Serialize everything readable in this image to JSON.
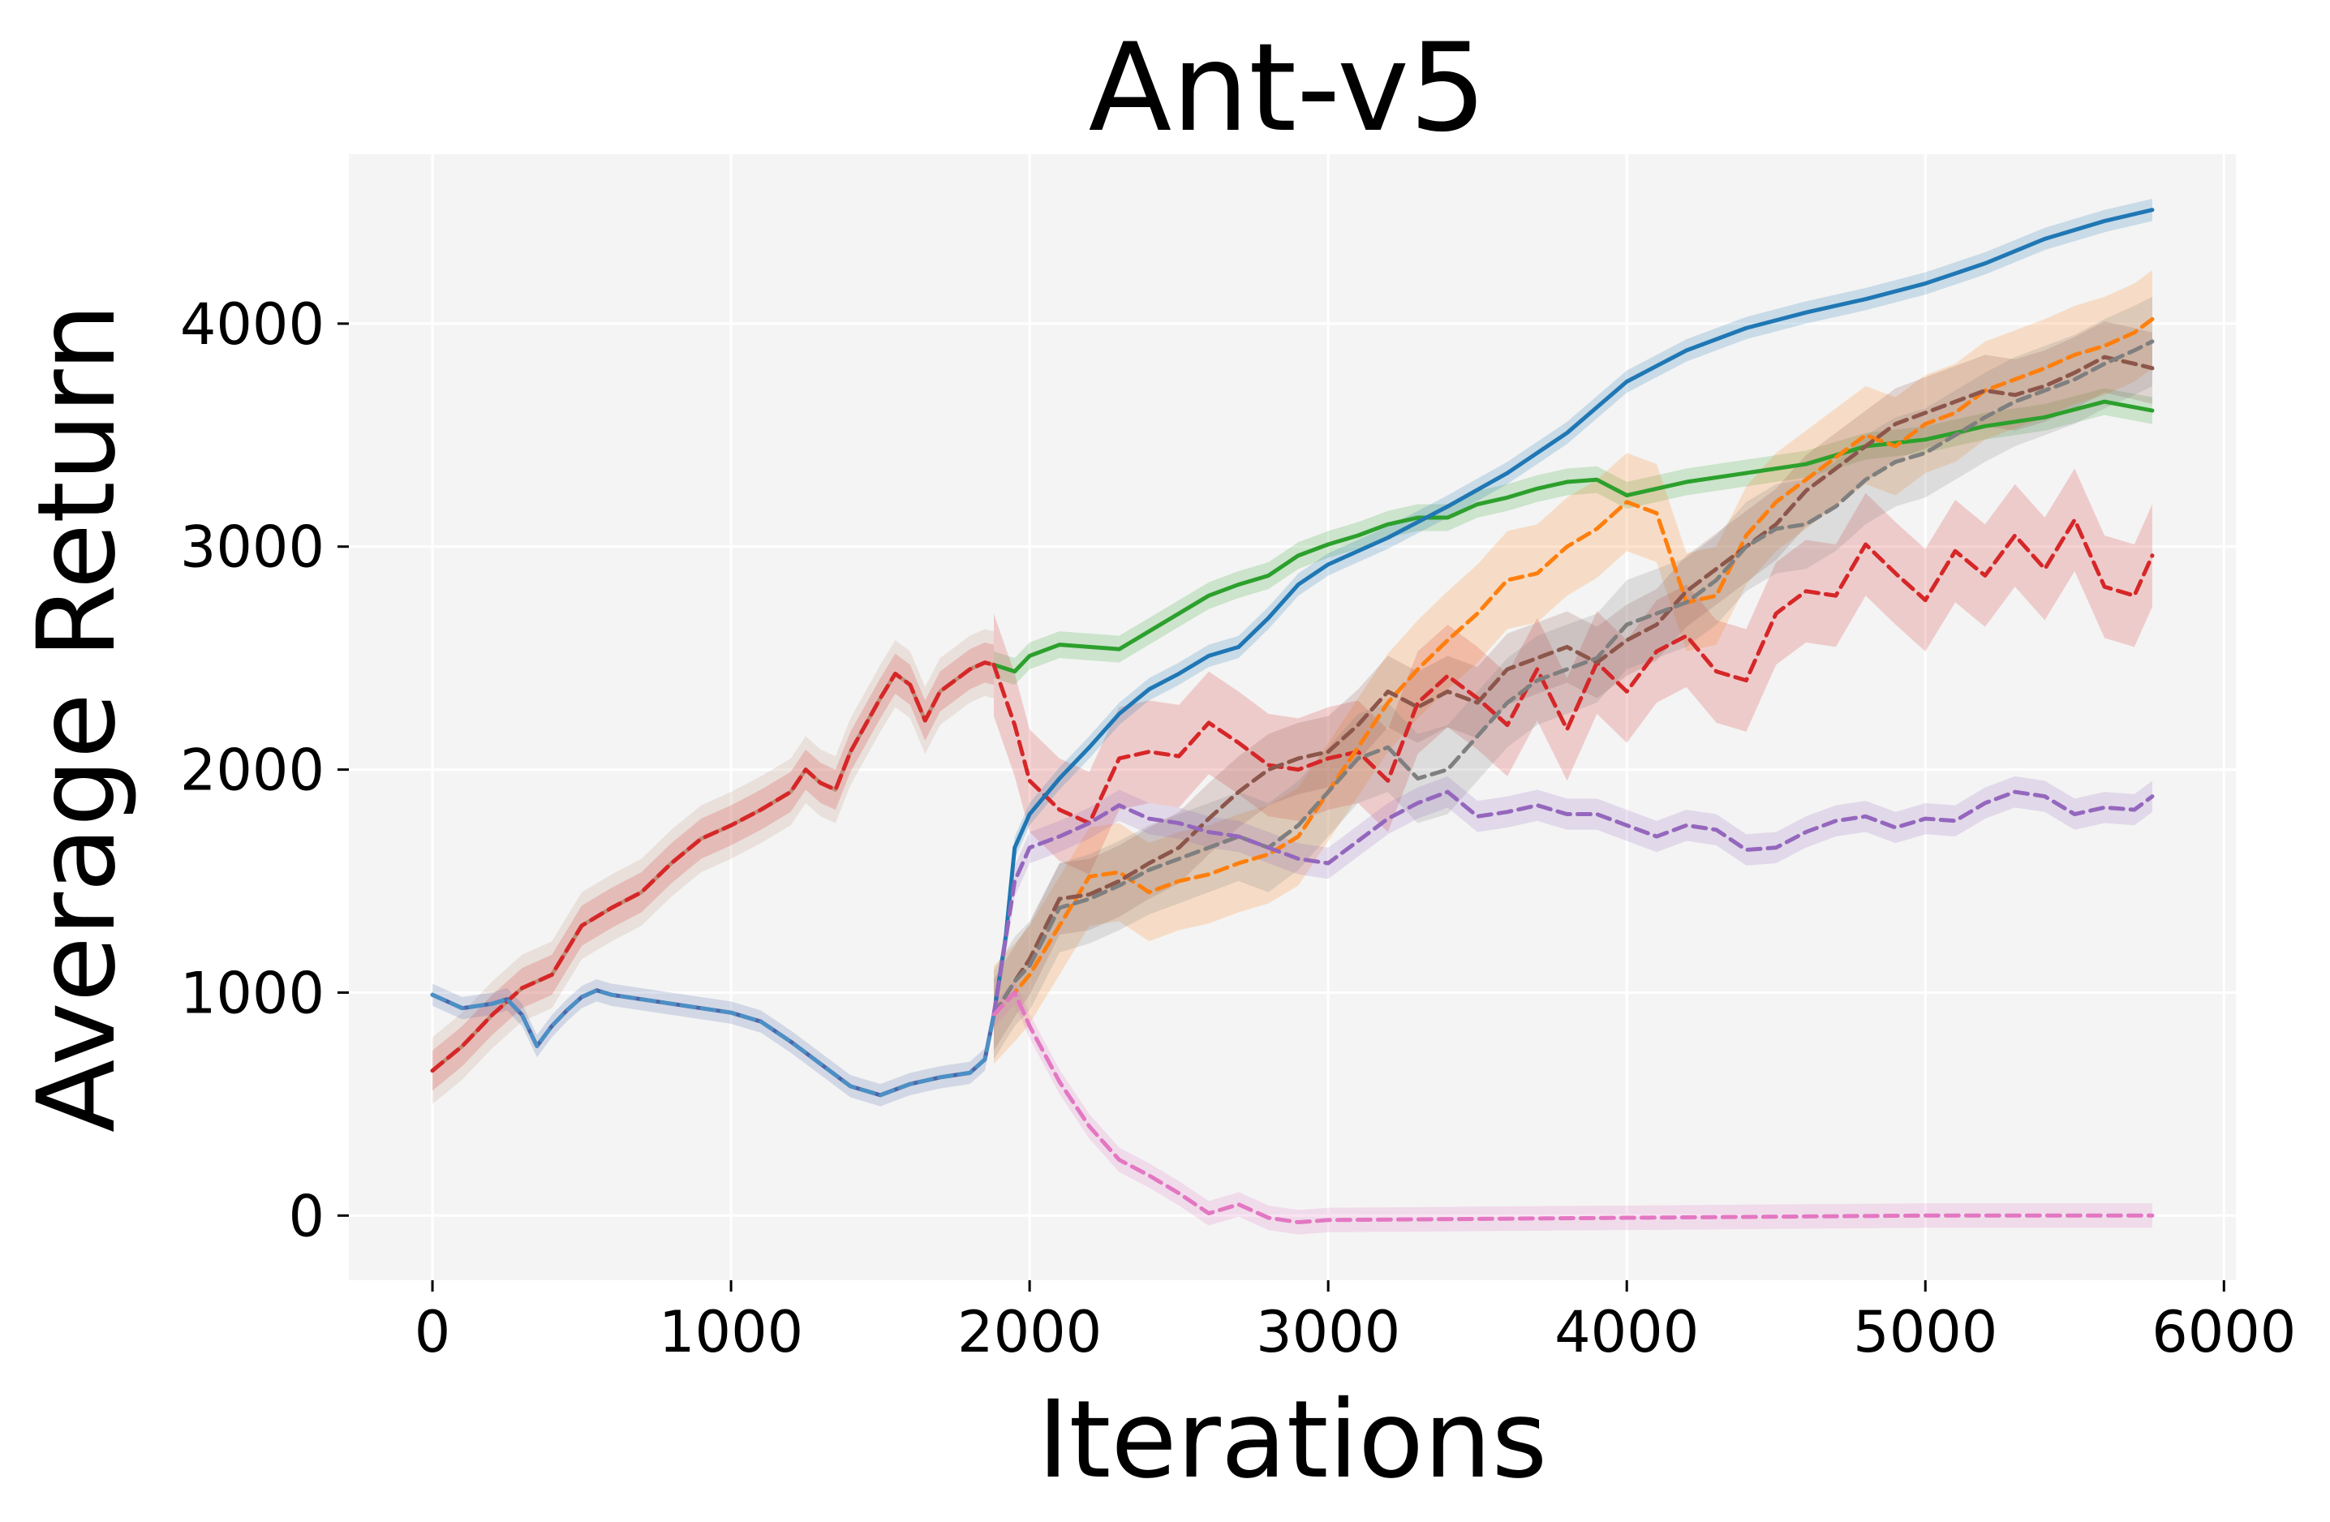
{
  "chart_data": {
    "type": "line",
    "title": "Ant-v5",
    "xlabel": "Iterations",
    "ylabel": "Average Return",
    "xlim": [
      -280,
      6040
    ],
    "ylim": [
      -290,
      4760
    ],
    "xticks": [
      0,
      1000,
      2000,
      3000,
      4000,
      5000,
      6000
    ],
    "yticks": [
      0,
      1000,
      2000,
      3000,
      4000
    ],
    "grid": true,
    "background": "#f4f4f4",
    "grid_color": "#ffffff",
    "series": [
      {
        "color": "#bf8f7a",
        "dash": false,
        "band": 150,
        "x": [
          0,
          100,
          200,
          300,
          400,
          500,
          600,
          700,
          800,
          900,
          1000,
          1100,
          1200,
          1250,
          1300,
          1350,
          1400,
          1450,
          1500,
          1550,
          1600,
          1650,
          1700,
          1750,
          1800,
          1850,
          1880
        ],
        "y": [
          650,
          760,
          900,
          1020,
          1080,
          1300,
          1380,
          1450,
          1580,
          1690,
          1750,
          1820,
          1900,
          2000,
          1940,
          1910,
          2080,
          2200,
          2320,
          2430,
          2380,
          2220,
          2350,
          2400,
          2450,
          2480,
          2470
        ]
      },
      {
        "color": "#2ca02c",
        "dash": false,
        "band": 60,
        "x": [
          1880,
          1950,
          2000,
          2100,
          2200,
          2300,
          2400,
          2500,
          2600,
          2700,
          2800,
          2900,
          3000,
          3100,
          3200,
          3300,
          3400,
          3500,
          3600,
          3700,
          3800,
          3900,
          4000,
          4200,
          4400,
          4600,
          4800,
          5000,
          5200,
          5400,
          5600,
          5760
        ],
        "y": [
          2470,
          2440,
          2510,
          2560,
          2550,
          2540,
          2620,
          2700,
          2780,
          2830,
          2870,
          2960,
          3010,
          3050,
          3100,
          3130,
          3130,
          3190,
          3220,
          3260,
          3290,
          3300,
          3230,
          3290,
          3330,
          3370,
          3450,
          3480,
          3540,
          3580,
          3650,
          3610
        ]
      },
      {
        "color": "#d62728",
        "dash": true,
        "band": 90,
        "x": [
          0,
          100,
          200,
          300,
          400,
          500,
          600,
          700,
          800,
          900,
          1000,
          1100,
          1200,
          1250,
          1300,
          1350,
          1400,
          1450,
          1500,
          1550,
          1600,
          1650,
          1700,
          1750,
          1800,
          1850,
          1880
        ],
        "y": [
          650,
          760,
          900,
          1020,
          1080,
          1300,
          1380,
          1450,
          1580,
          1690,
          1750,
          1820,
          1900,
          2000,
          1940,
          1910,
          2080,
          2200,
          2320,
          2430,
          2380,
          2220,
          2350,
          2400,
          2450,
          2480,
          2470
        ]
      },
      {
        "color": "#d62728",
        "dash": true,
        "band": 230,
        "x": [
          1880,
          1950,
          2000,
          2100,
          2200,
          2300,
          2400,
          2500,
          2600,
          2700,
          2800,
          2900,
          3000,
          3100,
          3200,
          3300,
          3400,
          3500,
          3600,
          3700,
          3800,
          3900,
          4000,
          4100,
          4200,
          4300,
          4400,
          4500,
          4600,
          4700,
          4800,
          4900,
          5000,
          5100,
          5200,
          5300,
          5400,
          5500,
          5600,
          5700,
          5760
        ],
        "y": [
          2470,
          2200,
          1950,
          1820,
          1760,
          2050,
          2080,
          2060,
          2210,
          2120,
          2020,
          2000,
          2050,
          2080,
          1950,
          2300,
          2420,
          2320,
          2200,
          2450,
          2180,
          2480,
          2350,
          2530,
          2600,
          2440,
          2400,
          2700,
          2800,
          2780,
          3010,
          2880,
          2760,
          2980,
          2870,
          3050,
          2900,
          3120,
          2820,
          2780,
          2960
        ]
      },
      {
        "color": "#4c66a8",
        "dash": false,
        "band": 50,
        "x": [
          0,
          50,
          100,
          200,
          250,
          300,
          350,
          400,
          450,
          500,
          550,
          600,
          700,
          800,
          900,
          1000,
          1100,
          1200,
          1300,
          1400,
          1500,
          1600,
          1700,
          1800,
          1850,
          1880
        ],
        "y": [
          990,
          960,
          930,
          950,
          970,
          900,
          760,
          850,
          920,
          980,
          1010,
          990,
          970,
          950,
          930,
          910,
          870,
          780,
          680,
          580,
          540,
          590,
          620,
          640,
          700,
          900
        ]
      },
      {
        "color": "#1f77b4",
        "dash": false,
        "band": 50,
        "x": [
          1880,
          1920,
          1950,
          2000,
          2100,
          2200,
          2300,
          2400,
          2500,
          2600,
          2700,
          2800,
          2900,
          3000,
          3200,
          3400,
          3600,
          3800,
          4000,
          4200,
          4400,
          4600,
          4800,
          5000,
          5200,
          5400,
          5600,
          5760
        ],
        "y": [
          900,
          1250,
          1650,
          1800,
          1960,
          2100,
          2250,
          2360,
          2430,
          2510,
          2550,
          2680,
          2830,
          2920,
          3040,
          3180,
          3330,
          3510,
          3740,
          3880,
          3980,
          4050,
          4110,
          4180,
          4270,
          4380,
          4460,
          4510
        ]
      },
      {
        "color": "#ff7f0e",
        "dash": true,
        "band": 220,
        "x": [
          1880,
          1950,
          2000,
          2100,
          2200,
          2300,
          2400,
          2500,
          2600,
          2700,
          2800,
          2900,
          3000,
          3100,
          3200,
          3300,
          3400,
          3500,
          3600,
          3700,
          3800,
          3900,
          4000,
          4100,
          4200,
          4300,
          4400,
          4500,
          4600,
          4700,
          4800,
          4900,
          5000,
          5100,
          5200,
          5300,
          5400,
          5500,
          5600,
          5700,
          5760
        ],
        "y": [
          900,
          1000,
          1080,
          1300,
          1520,
          1540,
          1450,
          1500,
          1530,
          1580,
          1620,
          1700,
          1900,
          2100,
          2300,
          2450,
          2580,
          2700,
          2850,
          2880,
          3000,
          3080,
          3200,
          3150,
          2750,
          2780,
          3050,
          3200,
          3300,
          3400,
          3500,
          3450,
          3550,
          3600,
          3700,
          3750,
          3800,
          3860,
          3900,
          3960,
          4020
        ]
      },
      {
        "color": "#8c564b",
        "dash": true,
        "band": 160,
        "x": [
          1880,
          1950,
          2000,
          2100,
          2200,
          2300,
          2400,
          2500,
          2600,
          2700,
          2800,
          2900,
          3000,
          3100,
          3200,
          3300,
          3400,
          3500,
          3600,
          3700,
          3800,
          3900,
          4000,
          4100,
          4200,
          4300,
          4400,
          4500,
          4600,
          4700,
          4800,
          4900,
          5000,
          5100,
          5200,
          5300,
          5400,
          5500,
          5600,
          5700,
          5760
        ],
        "y": [
          900,
          1050,
          1150,
          1420,
          1440,
          1500,
          1580,
          1650,
          1780,
          1900,
          2000,
          2050,
          2080,
          2200,
          2350,
          2280,
          2350,
          2300,
          2450,
          2500,
          2550,
          2480,
          2580,
          2650,
          2800,
          2900,
          3000,
          3100,
          3250,
          3350,
          3450,
          3550,
          3600,
          3650,
          3700,
          3680,
          3720,
          3780,
          3850,
          3820,
          3800
        ]
      },
      {
        "color": "#7f7f7f",
        "dash": true,
        "band": 200,
        "x": [
          1880,
          1950,
          2000,
          2100,
          2200,
          2300,
          2400,
          2500,
          2600,
          2700,
          2800,
          2900,
          3000,
          3100,
          3200,
          3300,
          3400,
          3500,
          3600,
          3700,
          3800,
          3900,
          4000,
          4100,
          4200,
          4300,
          4400,
          4500,
          4600,
          4700,
          4800,
          4900,
          5000,
          5100,
          5200,
          5300,
          5400,
          5500,
          5600,
          5700,
          5760
        ],
        "y": [
          900,
          1050,
          1120,
          1380,
          1420,
          1480,
          1550,
          1600,
          1650,
          1700,
          1650,
          1750,
          1900,
          2050,
          2100,
          1960,
          2000,
          2150,
          2300,
          2400,
          2450,
          2500,
          2650,
          2700,
          2750,
          2850,
          3000,
          3080,
          3100,
          3180,
          3300,
          3380,
          3420,
          3500,
          3580,
          3650,
          3700,
          3750,
          3820,
          3880,
          3920
        ]
      },
      {
        "color": "#9467bd",
        "dash": true,
        "band": 70,
        "x": [
          1880,
          1950,
          2000,
          2100,
          2200,
          2300,
          2400,
          2500,
          2600,
          2700,
          2800,
          2900,
          3000,
          3100,
          3200,
          3300,
          3400,
          3500,
          3600,
          3700,
          3800,
          3900,
          4000,
          4100,
          4200,
          4300,
          4400,
          4500,
          4600,
          4700,
          4800,
          4900,
          5000,
          5100,
          5200,
          5300,
          5400,
          5500,
          5600,
          5700,
          5760
        ],
        "y": [
          900,
          1500,
          1650,
          1700,
          1760,
          1840,
          1780,
          1760,
          1720,
          1700,
          1650,
          1600,
          1580,
          1680,
          1780,
          1850,
          1900,
          1790,
          1810,
          1840,
          1800,
          1800,
          1750,
          1700,
          1750,
          1730,
          1640,
          1650,
          1720,
          1770,
          1790,
          1740,
          1780,
          1770,
          1850,
          1900,
          1880,
          1800,
          1830,
          1820,
          1880
        ]
      },
      {
        "color": "#e377c2",
        "dash": true,
        "band": 55,
        "x": [
          1880,
          1950,
          2000,
          2100,
          2200,
          2300,
          2400,
          2500,
          2600,
          2700,
          2800,
          2900,
          3000,
          3500,
          4000,
          4500,
          5000,
          5760
        ],
        "y": [
          900,
          1000,
          850,
          600,
          400,
          250,
          180,
          100,
          10,
          50,
          -10,
          -30,
          -20,
          -15,
          -10,
          -5,
          0,
          0
        ]
      },
      {
        "color": "#4c8fc4",
        "dash": true,
        "band": 0,
        "x": [
          0,
          50,
          100,
          200,
          250,
          300,
          350,
          400,
          450,
          500,
          550,
          600,
          700,
          800,
          900,
          1000,
          1100,
          1200,
          1300,
          1400,
          1500,
          1600,
          1700,
          1800,
          1850,
          1880
        ],
        "y": [
          990,
          960,
          930,
          950,
          970,
          900,
          760,
          850,
          920,
          980,
          1010,
          990,
          970,
          950,
          930,
          910,
          870,
          780,
          680,
          580,
          540,
          590,
          620,
          640,
          700,
          900
        ]
      }
    ]
  }
}
